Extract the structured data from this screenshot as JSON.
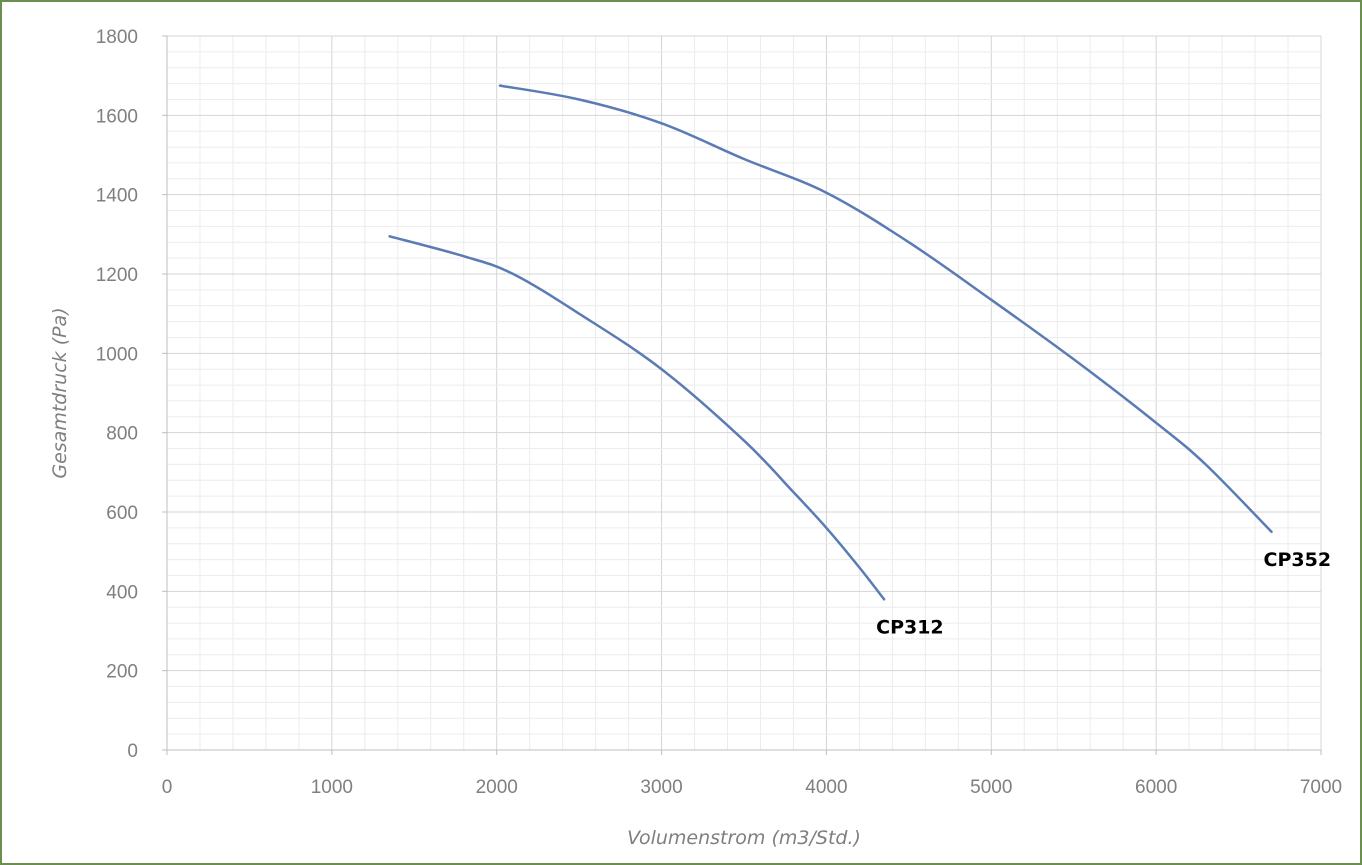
{
  "chart_data": {
    "type": "line",
    "title": "",
    "xlabel": "Volumenstrom (m3/Std.)",
    "ylabel": "Gesamtdruck (Pa)",
    "xlim": [
      0,
      7000
    ],
    "ylim": [
      0,
      1800
    ],
    "x_ticks": [
      0,
      1000,
      2000,
      3000,
      4000,
      5000,
      6000,
      7000
    ],
    "y_ticks": [
      0,
      200,
      400,
      600,
      800,
      1000,
      1200,
      1400,
      1600,
      1800
    ],
    "grid": true,
    "legend": "none",
    "line_color": "#5b7bb5",
    "series": [
      {
        "name": "CP312",
        "points": [
          [
            1350,
            1295
          ],
          [
            1800,
            1245
          ],
          [
            2100,
            1200
          ],
          [
            2500,
            1100
          ],
          [
            3000,
            960
          ],
          [
            3500,
            780
          ],
          [
            3800,
            650
          ],
          [
            4000,
            560
          ],
          [
            4200,
            460
          ],
          [
            4350,
            380
          ]
        ]
      },
      {
        "name": "CP352",
        "points": [
          [
            2020,
            1675
          ],
          [
            2500,
            1640
          ],
          [
            3000,
            1580
          ],
          [
            3500,
            1490
          ],
          [
            4000,
            1405
          ],
          [
            4500,
            1280
          ],
          [
            5000,
            1135
          ],
          [
            5500,
            985
          ],
          [
            6000,
            825
          ],
          [
            6300,
            720
          ],
          [
            6700,
            550
          ]
        ]
      }
    ]
  }
}
